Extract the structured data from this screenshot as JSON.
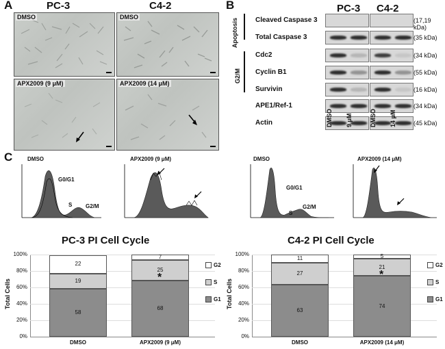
{
  "panel_a": {
    "label": "A",
    "headers": [
      "PC-3",
      "C4-2"
    ],
    "images": [
      {
        "caption": "DMSO"
      },
      {
        "caption": "DMSO"
      },
      {
        "caption": "APX2009 (9 μM)"
      },
      {
        "caption": "APX2009 (14 μM)"
      }
    ]
  },
  "panel_b": {
    "label": "B",
    "headers": [
      "PC-3",
      "C4-2"
    ],
    "group_apoptosis": "Apoptosis",
    "group_g2m": "G2/M",
    "rows": [
      {
        "name": "Cleaved Caspase 3",
        "kda": "(17,19 kDa)"
      },
      {
        "name": "Total Caspase 3",
        "kda": "(35 kDa)"
      },
      {
        "name": "Cdc2",
        "kda": "(34 kDa)"
      },
      {
        "name": "Cyclin B1",
        "kda": "(55 kDa)"
      },
      {
        "name": "Survivin",
        "kda": "(16 kDa)"
      },
      {
        "name": "APE1/Ref-1",
        "kda": "(34 kDa)"
      },
      {
        "name": "Actin",
        "kda": "(45 kDa)"
      }
    ],
    "lanes": [
      "DMSO",
      "9 μM",
      "DMSO",
      "14 μM"
    ]
  },
  "panel_c": {
    "label": "C",
    "histograms": [
      {
        "title": "DMSO",
        "labels": [
          "G0/G1",
          "S",
          "G2/M"
        ]
      },
      {
        "title": "APX2009 (9 μM)"
      },
      {
        "title": "DMSO",
        "labels": [
          "G0/G1",
          "S",
          "G2/M"
        ]
      },
      {
        "title": "APX2009 (14 μM)"
      }
    ]
  },
  "legend": {
    "g2": "G2",
    "s": "S",
    "g1": "G1"
  },
  "colors": {
    "g1": "#8c8c8c",
    "s": "#cfcfcf",
    "g2": "#ffffff"
  },
  "chart_data": [
    {
      "type": "bar",
      "stacked": true,
      "title": "PC-3 PI Cell Cycle",
      "ylabel": "Total Cells",
      "yticks": [
        "0%",
        "20%",
        "40%",
        "60%",
        "80%",
        "100%"
      ],
      "ylim": [
        0,
        100
      ],
      "categories": [
        "DMSO",
        "APX2009 (9 μM)"
      ],
      "series": [
        {
          "name": "G1",
          "values": [
            58,
            68
          ]
        },
        {
          "name": "S",
          "values": [
            19,
            25
          ]
        },
        {
          "name": "G2",
          "values": [
            22,
            7
          ]
        }
      ],
      "significance": [
        "",
        "*"
      ]
    },
    {
      "type": "bar",
      "stacked": true,
      "title": "C4-2 PI Cell Cycle",
      "ylabel": "Total Cells",
      "yticks": [
        "0%",
        "20%",
        "40%",
        "60%",
        "80%",
        "100%"
      ],
      "ylim": [
        0,
        100
      ],
      "categories": [
        "DMSO",
        "APX2009 (14 μM)"
      ],
      "series": [
        {
          "name": "G1",
          "values": [
            63,
            74
          ]
        },
        {
          "name": "S",
          "values": [
            27,
            21
          ]
        },
        {
          "name": "G2",
          "values": [
            11,
            5
          ]
        }
      ],
      "significance": [
        "",
        "*"
      ]
    }
  ]
}
